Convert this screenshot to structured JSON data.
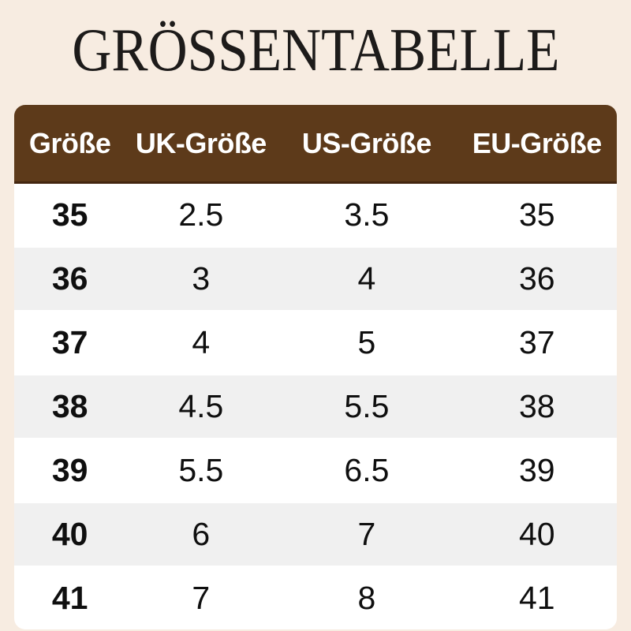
{
  "title": "GRÖSSENTABELLE",
  "chart_data": {
    "type": "table",
    "title": "GRÖSSENTABELLE",
    "columns": [
      "Größe",
      "UK-Größe",
      "US-Größe",
      "EU-Größe"
    ],
    "rows": [
      [
        "35",
        "2.5",
        "3.5",
        "35"
      ],
      [
        "36",
        "3",
        "4",
        "36"
      ],
      [
        "37",
        "4",
        "5",
        "37"
      ],
      [
        "38",
        "4.5",
        "5.5",
        "38"
      ],
      [
        "39",
        "5.5",
        "6.5",
        "39"
      ],
      [
        "40",
        "6",
        "7",
        "40"
      ],
      [
        "41",
        "7",
        "8",
        "41"
      ]
    ]
  },
  "colors": {
    "background": "#f7ece1",
    "title_text": "#1d1b1a",
    "header_bg": "#5d3a1a",
    "header_border": "#432610",
    "header_text": "#ffffff",
    "row_bg": "#ffffff",
    "row_alt_bg": "#f0f0f0",
    "cell_text": "#0f0f0f"
  }
}
